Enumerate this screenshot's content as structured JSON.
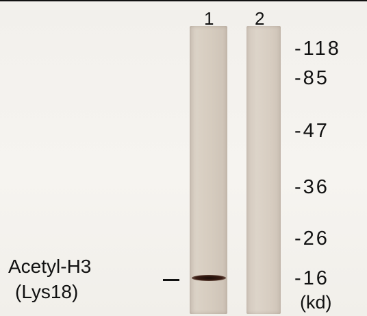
{
  "lanes": {
    "lane1_label": "1",
    "lane2_label": "2"
  },
  "markers": [
    "-118",
    "-85",
    "-47",
    "-36",
    "-26",
    "-16"
  ],
  "unit": "(kd)",
  "protein": {
    "line1": "Acetyl-H3",
    "line2": "(Lys18)"
  },
  "colors": {
    "band": "#1a0c08",
    "lane": "#d6ccbf",
    "background": "#f4f2ee"
  }
}
